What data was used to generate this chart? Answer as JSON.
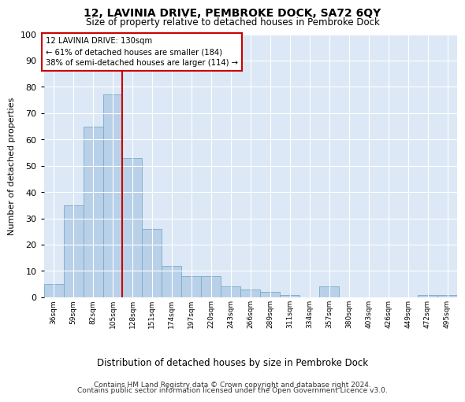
{
  "title": "12, LAVINIA DRIVE, PEMBROKE DOCK, SA72 6QY",
  "subtitle": "Size of property relative to detached houses in Pembroke Dock",
  "xlabel": "Distribution of detached houses by size in Pembroke Dock",
  "ylabel": "Number of detached properties",
  "categories": [
    "36sqm",
    "59sqm",
    "82sqm",
    "105sqm",
    "128sqm",
    "151sqm",
    "174sqm",
    "197sqm",
    "220sqm",
    "243sqm",
    "266sqm",
    "289sqm",
    "311sqm",
    "334sqm",
    "357sqm",
    "380sqm",
    "403sqm",
    "426sqm",
    "449sqm",
    "472sqm",
    "495sqm"
  ],
  "values": [
    5,
    35,
    65,
    77,
    53,
    26,
    12,
    8,
    8,
    4,
    3,
    2,
    1,
    0,
    4,
    0,
    0,
    0,
    0,
    1,
    1
  ],
  "bar_color": "#b8d0e8",
  "bar_edge_color": "#7aaac8",
  "vline_color": "#cc0000",
  "vline_index": 3.5,
  "annotation_title": "12 LAVINIA DRIVE: 130sqm",
  "annotation_line1": "← 61% of detached houses are smaller (184)",
  "annotation_line2": "38% of semi-detached houses are larger (114) →",
  "annotation_box_edgecolor": "#cc0000",
  "ylim": [
    0,
    100
  ],
  "yticks": [
    0,
    10,
    20,
    30,
    40,
    50,
    60,
    70,
    80,
    90,
    100
  ],
  "footer1": "Contains HM Land Registry data © Crown copyright and database right 2024.",
  "footer2": "Contains public sector information licensed under the Open Government Licence v3.0.",
  "fig_bg_color": "#ffffff",
  "plot_bg_color": "#dce8f5",
  "grid_color": "#ffffff"
}
